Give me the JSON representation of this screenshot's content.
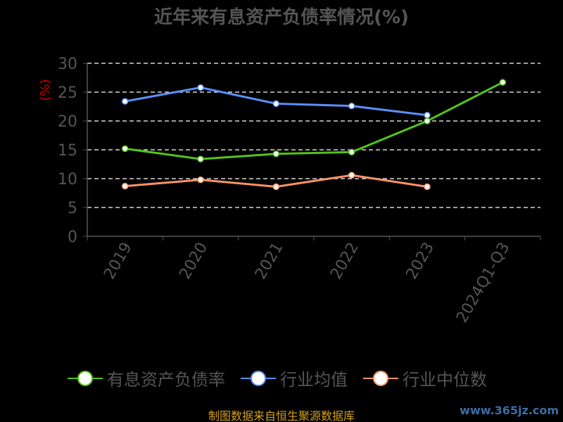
{
  "chart_data": {
    "type": "line",
    "title": "近年来有息资产负债率情况(%)",
    "ylabel": "(%)",
    "xlabel": "",
    "categories": [
      "2019",
      "2020",
      "2021",
      "2022",
      "2023",
      "2024Q1-Q3"
    ],
    "ylim": [
      0,
      30
    ],
    "yticks": [
      0,
      5,
      10,
      15,
      20,
      25,
      30
    ],
    "grid": true,
    "legend_position": "bottom",
    "series": [
      {
        "name": "有息资产负债率",
        "color": "#52c41a",
        "values": [
          15.2,
          13.4,
          14.3,
          14.6,
          20.0,
          26.7
        ]
      },
      {
        "name": "行业均值",
        "color": "#5b8ff9",
        "values": [
          23.4,
          25.8,
          23.0,
          22.6,
          21.0,
          null
        ]
      },
      {
        "name": "行业中位数",
        "color": "#ff9466",
        "values": [
          8.7,
          9.8,
          8.6,
          10.6,
          8.6,
          null
        ]
      }
    ]
  },
  "footer": {
    "source": "制图数据来自恒生聚源数据库",
    "watermark": "www.365jz.com"
  }
}
